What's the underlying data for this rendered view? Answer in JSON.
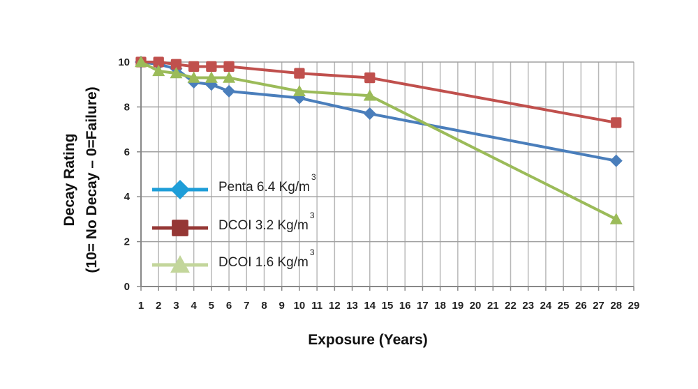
{
  "chart_data": {
    "type": "line",
    "xlabel": "Exposure (Years)",
    "ylabel_lines": [
      "Decay Rating",
      "(10= No Decay – 0=Failure)"
    ],
    "x_ticks": [
      1,
      2,
      3,
      4,
      5,
      6,
      7,
      8,
      9,
      10,
      11,
      12,
      13,
      14,
      15,
      16,
      17,
      18,
      19,
      20,
      21,
      22,
      23,
      24,
      25,
      26,
      27,
      28,
      29
    ],
    "y_ticks": [
      0,
      2,
      4,
      6,
      8,
      10
    ],
    "xlim": [
      1,
      29
    ],
    "ylim": [
      0,
      10
    ],
    "grid": true,
    "legend_position": "left-center",
    "series": [
      {
        "name": "Penta 6.4 Kg/m",
        "name_sup": "3",
        "color": "#4a7ebb",
        "legend_color": "#1f9ed8",
        "marker": "diamond",
        "x": [
          1,
          2,
          3,
          4,
          5,
          6,
          10,
          14,
          28
        ],
        "y": [
          10,
          9.9,
          9.7,
          9.1,
          9.0,
          8.7,
          8.4,
          7.7,
          5.6
        ]
      },
      {
        "name": "DCOI 3.2 Kg/m",
        "name_sup": "3",
        "color": "#c0504d",
        "legend_color": "#953735",
        "marker": "square",
        "x": [
          1,
          2,
          3,
          4,
          5,
          6,
          10,
          14,
          28
        ],
        "y": [
          10,
          10,
          9.9,
          9.8,
          9.8,
          9.8,
          9.5,
          9.3,
          7.3
        ]
      },
      {
        "name": "DCOI 1.6 Kg/m",
        "name_sup": "3",
        "color": "#9bbb59",
        "legend_color": "#c3d69b",
        "marker": "triangle",
        "x": [
          1,
          2,
          3,
          4,
          5,
          6,
          10,
          14,
          28
        ],
        "y": [
          10,
          9.6,
          9.5,
          9.3,
          9.3,
          9.3,
          8.7,
          8.5,
          3.0
        ]
      }
    ]
  }
}
